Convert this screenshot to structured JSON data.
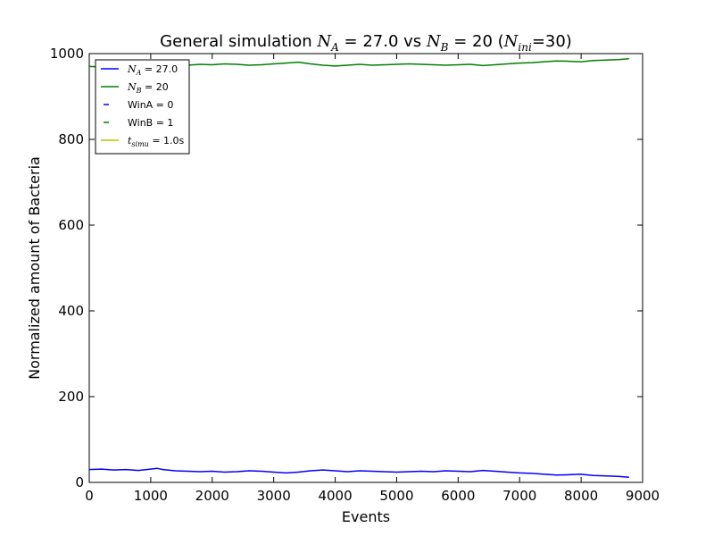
{
  "chart_data": {
    "type": "line",
    "title": {
      "prefix": "General simulation ",
      "na_symbol": "N",
      "na_sub": "A",
      "na_value": " = 27.0 vs ",
      "nb_symbol": "N",
      "nb_sub": "B",
      "nb_value": " = 20 (",
      "nini_symbol": "N",
      "nini_sub": "ini",
      "nini_value": "=30)"
    },
    "xlabel": "Events",
    "ylabel": "Normalized amount of Bacteria",
    "xlim": [
      0,
      9000
    ],
    "ylim": [
      0,
      1000
    ],
    "xticks": [
      0,
      1000,
      2000,
      3000,
      4000,
      5000,
      6000,
      7000,
      8000,
      9000
    ],
    "yticks": [
      0,
      200,
      400,
      600,
      800,
      1000
    ],
    "grid": false,
    "legend_position": "top-left",
    "legend": [
      {
        "symbol": "N",
        "sub": "A",
        "text": " = 27.0",
        "color": "#0000ff",
        "style": "solid"
      },
      {
        "symbol": "N",
        "sub": "B",
        "text": " = 20",
        "color": "#008000",
        "style": "solid"
      },
      {
        "symbol": "",
        "sub": "",
        "text": "WinA = 0",
        "color": "#0000ff",
        "style": "dashed"
      },
      {
        "symbol": "",
        "sub": "",
        "text": "WinB = 1",
        "color": "#008000",
        "style": "dashed"
      },
      {
        "symbol": "t",
        "sub": "simu",
        "text": " = 1.0s",
        "color": "#bfbf00",
        "style": "solid"
      }
    ],
    "series": [
      {
        "name": "N_A = 27.0",
        "color": "#0000ff",
        "x": [
          0,
          200,
          400,
          600,
          800,
          1000,
          1100,
          1200,
          1400,
          1600,
          1800,
          2000,
          2200,
          2400,
          2600,
          2800,
          3000,
          3200,
          3400,
          3600,
          3800,
          4000,
          4200,
          4400,
          4600,
          4800,
          5000,
          5200,
          5400,
          5600,
          5800,
          6000,
          6200,
          6400,
          6600,
          6800,
          7000,
          7200,
          7400,
          7600,
          7800,
          8000,
          8200,
          8400,
          8600,
          8780
        ],
        "y": [
          30,
          31,
          29,
          30,
          28,
          31,
          33,
          30,
          27,
          26,
          25,
          26,
          24,
          25,
          27,
          26,
          24,
          22,
          24,
          27,
          29,
          27,
          25,
          27,
          26,
          25,
          24,
          25,
          26,
          25,
          27,
          26,
          25,
          28,
          26,
          24,
          22,
          21,
          19,
          17,
          18,
          19,
          16,
          15,
          14,
          12
        ]
      },
      {
        "name": "N_B = 20",
        "color": "#008000",
        "x": [
          0,
          200,
          400,
          600,
          800,
          1000,
          1200,
          1400,
          1600,
          1800,
          2000,
          2200,
          2400,
          2600,
          2800,
          3000,
          3200,
          3400,
          3600,
          3800,
          4000,
          4200,
          4400,
          4600,
          4800,
          5000,
          5200,
          5400,
          5600,
          5800,
          6000,
          6200,
          6400,
          6600,
          6800,
          7000,
          7200,
          7400,
          7600,
          7800,
          8000,
          8200,
          8400,
          8600,
          8780
        ],
        "y": [
          970,
          969,
          971,
          970,
          972,
          969,
          967,
          970,
          973,
          975,
          974,
          976,
          975,
          973,
          974,
          976,
          978,
          980,
          976,
          973,
          971,
          973,
          975,
          973,
          974,
          975,
          976,
          975,
          974,
          973,
          974,
          975,
          972,
          974,
          976,
          978,
          979,
          981,
          983,
          982,
          981,
          984,
          985,
          986,
          988
        ]
      }
    ]
  }
}
